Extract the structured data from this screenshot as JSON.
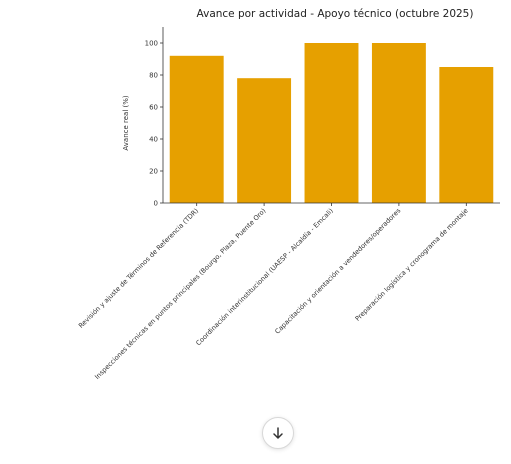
{
  "chart_data": {
    "type": "bar",
    "title": "Avance por actividad - Apoyo técnico (octubre 2025)",
    "ylabel": "Avance real (%)",
    "xlabel": "",
    "ylim": [
      0,
      110
    ],
    "yticks": [
      0,
      20,
      40,
      60,
      80,
      100
    ],
    "categories": [
      "Revisión y ajuste de Términos de Referencia (TDR)",
      "Inspecciones técnicas en puntos principales (Bourgo, Plaza, Puente Oro)",
      "Coordinación interinstitucional (UAESP - Alcaldía - Emcali)",
      "Capacitación y orientación a vendedores/operadores",
      "Preparación logística y cronograma de montaje"
    ],
    "values": [
      92,
      78,
      100,
      100,
      85
    ],
    "bar_color": "#e6a000",
    "grid": false,
    "legend": "none"
  },
  "scroll_button": {
    "icon": "arrow-down-icon"
  }
}
